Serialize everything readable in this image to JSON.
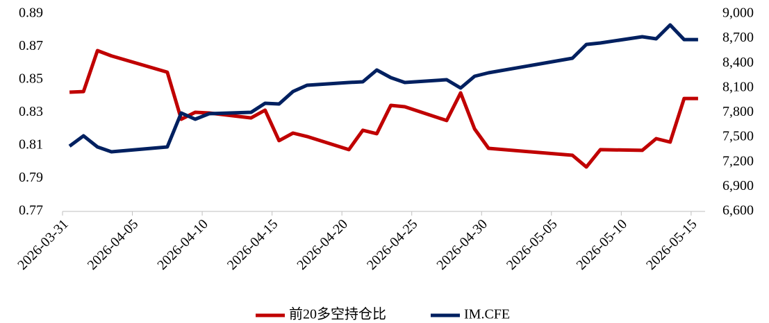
{
  "chart_data": {
    "type": "line",
    "x": [
      "2026-03-31",
      "2026-04-01",
      "2026-04-02",
      "2026-04-03",
      "2026-04-07",
      "2026-04-08",
      "2026-04-09",
      "2026-04-10",
      "2026-04-13",
      "2026-04-14",
      "2026-04-15",
      "2026-04-16",
      "2026-04-17",
      "2026-04-20",
      "2026-04-21",
      "2026-04-22",
      "2026-04-23",
      "2026-04-24",
      "2026-04-27",
      "2026-04-28",
      "2026-04-29",
      "2026-04-30",
      "2026-05-06",
      "2026-05-07",
      "2026-05-08",
      "2026-05-11",
      "2026-05-12",
      "2026-05-13",
      "2026-05-14",
      "2026-05-15"
    ],
    "series": [
      {
        "name": "前20多空持仓比",
        "color": "#c00000",
        "values": [
          0.8424,
          0.8428,
          0.8677,
          0.8645,
          0.8546,
          0.826,
          0.8302,
          0.8298,
          0.8268,
          0.8315,
          0.813,
          0.8176,
          0.8155,
          0.8075,
          0.8193,
          0.8172,
          0.8344,
          0.8336,
          0.8252,
          0.842,
          0.8201,
          0.8083,
          0.8041,
          0.797,
          0.8075,
          0.8071,
          0.8142,
          0.8121,
          0.8386,
          0.8386
        ]
      },
      {
        "name": "IM.CFE",
        "color": "#002060",
        "axis": "y2",
        "values": [
          7392,
          7518,
          7383,
          7324,
          7383,
          7796,
          7720,
          7787,
          7804,
          7914,
          7905,
          8057,
          8133,
          8166,
          8175,
          8318,
          8225,
          8166,
          8200,
          8099,
          8242,
          8284,
          8461,
          8629,
          8646,
          8722,
          8697,
          8865,
          8688,
          8688
        ]
      }
    ],
    "xlim": [
      "2026-03-31",
      "2026-05-16"
    ],
    "xticks": [
      "2026-03-31",
      "2026-04-05",
      "2026-04-10",
      "2026-04-15",
      "2026-04-20",
      "2026-04-25",
      "2026-04-30",
      "2026-05-05",
      "2026-05-10",
      "2026-05-15"
    ],
    "ylim": [
      0.77,
      0.89
    ],
    "yticks": [
      0.77,
      0.79,
      0.81,
      0.83,
      0.85,
      0.87,
      0.89
    ],
    "y2lim": [
      6600,
      9000
    ],
    "y2ticks": [
      {
        "value": 6600,
        "label": "6,600"
      },
      {
        "value": 6900,
        "label": "6,900"
      },
      {
        "value": 7200,
        "label": "7,200"
      },
      {
        "value": 7500,
        "label": "7,500"
      },
      {
        "value": 7800,
        "label": "7,800"
      },
      {
        "value": 8100,
        "label": "8,100"
      },
      {
        "value": 8400,
        "label": "8,400"
      },
      {
        "value": 8700,
        "label": "8,700"
      },
      {
        "value": 9000,
        "label": "9,000"
      }
    ],
    "legend": "bottom"
  }
}
